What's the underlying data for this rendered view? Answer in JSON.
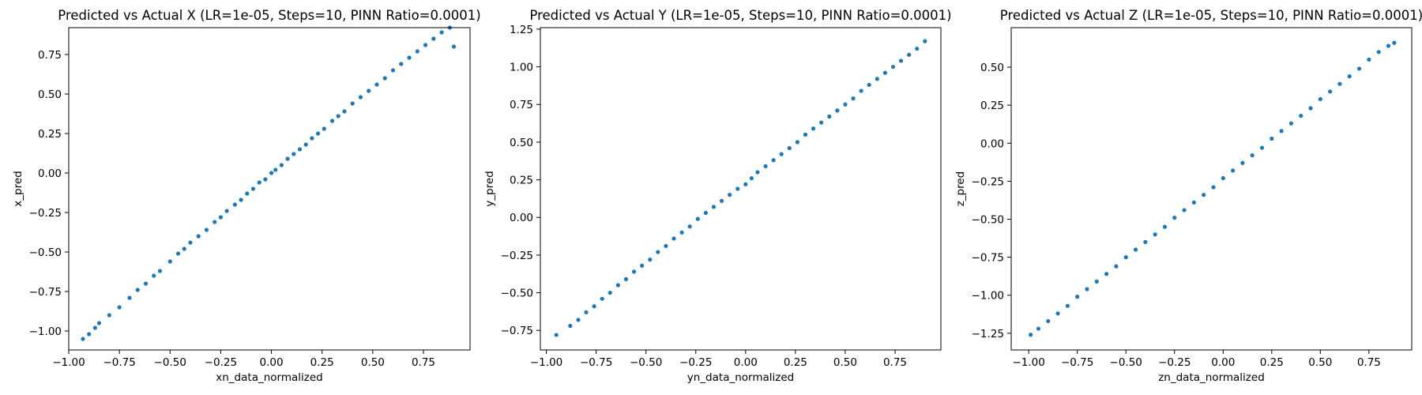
{
  "chart_data": [
    {
      "type": "scatter",
      "title": "Predicted vs Actual X (LR=1e-05, Steps=10, PINN Ratio=0.0001)",
      "xlabel": "xn_data_normalized",
      "ylabel": "x_pred",
      "xlim": [
        -1.0,
        0.98
      ],
      "ylim": [
        -1.12,
        0.92
      ],
      "xticks": [
        -1.0,
        -0.75,
        -0.5,
        -0.25,
        0.0,
        0.25,
        0.5,
        0.75
      ],
      "xtick_labels": [
        "−1.00",
        "−0.75",
        "−0.50",
        "−0.25",
        "0.00",
        "0.25",
        "0.50",
        "0.75"
      ],
      "yticks": [
        -1.0,
        -0.75,
        -0.5,
        -0.25,
        0.0,
        0.25,
        0.5,
        0.75
      ],
      "ytick_labels": [
        "−1.00",
        "−0.75",
        "−0.50",
        "−0.25",
        "0.00",
        "0.25",
        "0.50",
        "0.75"
      ],
      "color": "#1f77b4",
      "series": [
        {
          "x": [
            -0.93,
            -0.9,
            -0.87,
            -0.85,
            -0.8,
            -0.75,
            -0.7,
            -0.66,
            -0.62,
            -0.58,
            -0.55,
            -0.5,
            -0.46,
            -0.43,
            -0.4,
            -0.36,
            -0.32,
            -0.28,
            -0.25,
            -0.22,
            -0.18,
            -0.15,
            -0.12,
            -0.09,
            -0.06,
            -0.03,
            0.0,
            0.02,
            0.05,
            0.08,
            0.11,
            0.14,
            0.17,
            0.2,
            0.23,
            0.26,
            0.3,
            0.33,
            0.36,
            0.4,
            0.44,
            0.48,
            0.52,
            0.56,
            0.6,
            0.64,
            0.68,
            0.72,
            0.76,
            0.8,
            0.84,
            0.88,
            0.9
          ],
          "y": [
            -1.05,
            -1.02,
            -0.98,
            -0.95,
            -0.9,
            -0.85,
            -0.79,
            -0.74,
            -0.7,
            -0.65,
            -0.62,
            -0.56,
            -0.51,
            -0.48,
            -0.44,
            -0.4,
            -0.36,
            -0.31,
            -0.28,
            -0.24,
            -0.2,
            -0.17,
            -0.13,
            -0.1,
            -0.06,
            -0.04,
            0.0,
            0.02,
            0.05,
            0.09,
            0.12,
            0.15,
            0.18,
            0.22,
            0.25,
            0.28,
            0.33,
            0.36,
            0.39,
            0.44,
            0.48,
            0.52,
            0.56,
            0.6,
            0.65,
            0.69,
            0.73,
            0.77,
            0.81,
            0.85,
            0.89,
            0.92,
            0.8
          ]
        }
      ]
    },
    {
      "type": "scatter",
      "title": "Predicted vs Actual Y (LR=1e-05, Steps=10, PINN Ratio=0.0001)",
      "xlabel": "yn_data_normalized",
      "ylabel": "y_pred",
      "xlim": [
        -1.03,
        0.98
      ],
      "ylim": [
        -0.88,
        1.26
      ],
      "xticks": [
        -1.0,
        -0.75,
        -0.5,
        -0.25,
        0.0,
        0.25,
        0.5,
        0.75
      ],
      "xtick_labels": [
        "−1.00",
        "−0.75",
        "−0.50",
        "−0.25",
        "0.00",
        "0.25",
        "0.50",
        "0.75"
      ],
      "yticks": [
        -0.75,
        -0.5,
        -0.25,
        0.0,
        0.25,
        0.5,
        0.75,
        1.0,
        1.25
      ],
      "ytick_labels": [
        "−0.75",
        "−0.50",
        "−0.25",
        "0.00",
        "0.25",
        "0.50",
        "0.75",
        "1.00",
        "1.25"
      ],
      "color": "#1f77b4",
      "series": [
        {
          "x": [
            -0.95,
            -0.88,
            -0.84,
            -0.8,
            -0.76,
            -0.72,
            -0.68,
            -0.64,
            -0.6,
            -0.56,
            -0.52,
            -0.48,
            -0.44,
            -0.4,
            -0.36,
            -0.32,
            -0.28,
            -0.24,
            -0.2,
            -0.16,
            -0.12,
            -0.08,
            -0.04,
            0.0,
            0.03,
            0.06,
            0.1,
            0.14,
            0.18,
            0.22,
            0.26,
            0.3,
            0.34,
            0.38,
            0.42,
            0.46,
            0.5,
            0.54,
            0.58,
            0.62,
            0.66,
            0.7,
            0.74,
            0.78,
            0.82,
            0.86,
            0.9
          ],
          "y": [
            -0.78,
            -0.72,
            -0.68,
            -0.63,
            -0.59,
            -0.54,
            -0.5,
            -0.45,
            -0.41,
            -0.36,
            -0.32,
            -0.28,
            -0.23,
            -0.19,
            -0.14,
            -0.1,
            -0.06,
            -0.01,
            0.03,
            0.07,
            0.11,
            0.15,
            0.19,
            0.22,
            0.26,
            0.3,
            0.34,
            0.38,
            0.42,
            0.46,
            0.5,
            0.55,
            0.59,
            0.63,
            0.67,
            0.71,
            0.75,
            0.79,
            0.84,
            0.88,
            0.92,
            0.96,
            1.0,
            1.04,
            1.08,
            1.12,
            1.17
          ]
        }
      ]
    },
    {
      "type": "scatter",
      "title": "Predicted vs Actual Z (LR=1e-05, Steps=10, PINN Ratio=0.0001)",
      "xlabel": "zn_data_normalized",
      "ylabel": "z_pred",
      "xlim": [
        -1.09,
        0.97
      ],
      "ylim": [
        -1.36,
        0.76
      ],
      "xticks": [
        -1.0,
        -0.75,
        -0.5,
        -0.25,
        0.0,
        0.25,
        0.5,
        0.75
      ],
      "xtick_labels": [
        "−1.00",
        "−0.75",
        "−0.50",
        "−0.25",
        "0.00",
        "0.25",
        "0.50",
        "0.75"
      ],
      "yticks": [
        -1.25,
        -1.0,
        -0.75,
        -0.5,
        -0.25,
        0.0,
        0.25,
        0.5
      ],
      "ytick_labels": [
        "−1.25",
        "−1.00",
        "−0.75",
        "−0.50",
        "−0.25",
        "0.00",
        "0.25",
        "0.50"
      ],
      "color": "#1f77b4",
      "series": [
        {
          "x": [
            -0.99,
            -0.95,
            -0.9,
            -0.85,
            -0.8,
            -0.75,
            -0.7,
            -0.65,
            -0.6,
            -0.55,
            -0.5,
            -0.45,
            -0.4,
            -0.35,
            -0.3,
            -0.25,
            -0.2,
            -0.15,
            -0.1,
            -0.05,
            0.0,
            0.05,
            0.1,
            0.15,
            0.2,
            0.25,
            0.3,
            0.35,
            0.4,
            0.45,
            0.5,
            0.55,
            0.6,
            0.65,
            0.7,
            0.75,
            0.8,
            0.85,
            0.88
          ],
          "y": [
            -1.26,
            -1.22,
            -1.17,
            -1.12,
            -1.07,
            -1.01,
            -0.96,
            -0.91,
            -0.86,
            -0.81,
            -0.75,
            -0.7,
            -0.65,
            -0.6,
            -0.55,
            -0.49,
            -0.44,
            -0.39,
            -0.34,
            -0.29,
            -0.23,
            -0.18,
            -0.13,
            -0.08,
            -0.03,
            0.03,
            0.08,
            0.13,
            0.18,
            0.23,
            0.29,
            0.34,
            0.39,
            0.44,
            0.49,
            0.55,
            0.6,
            0.64,
            0.66
          ]
        }
      ]
    }
  ]
}
